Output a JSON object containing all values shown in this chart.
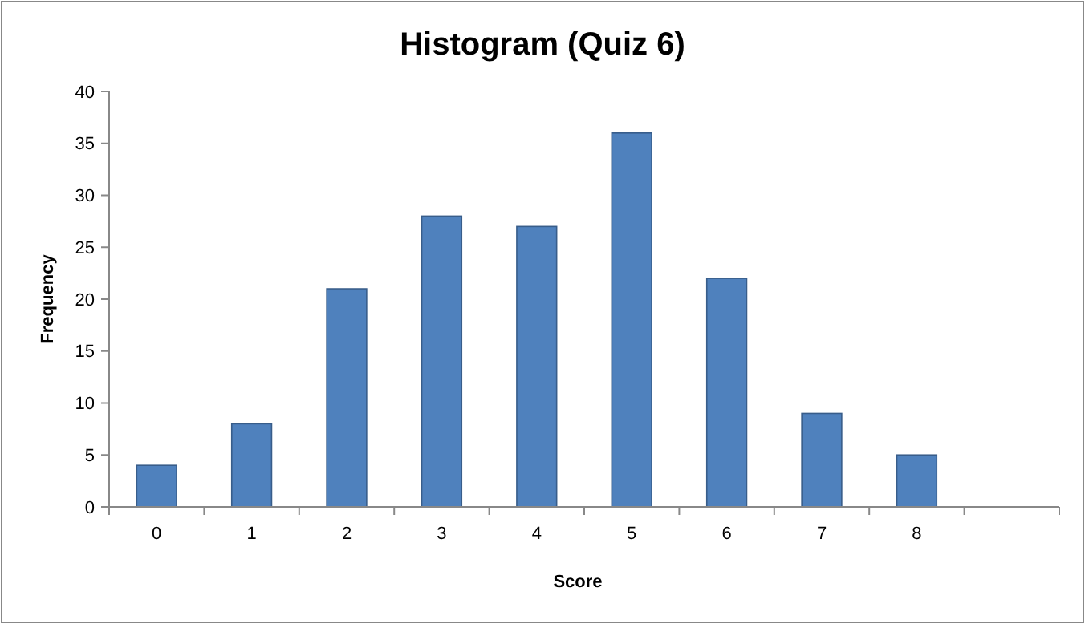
{
  "chart_data": {
    "type": "bar",
    "title": "Histogram (Quiz 6)",
    "xlabel": "Score",
    "ylabel": "Frequency",
    "categories": [
      "0",
      "1",
      "2",
      "3",
      "4",
      "5",
      "6",
      "7",
      "8",
      null
    ],
    "values": [
      4,
      8,
      21,
      28,
      27,
      36,
      22,
      9,
      5,
      null
    ],
    "color": "#4f81bd",
    "ylim": [
      0,
      40
    ],
    "yticks": [
      0,
      5,
      10,
      15,
      20,
      25,
      30,
      35,
      40
    ],
    "grid": false
  }
}
